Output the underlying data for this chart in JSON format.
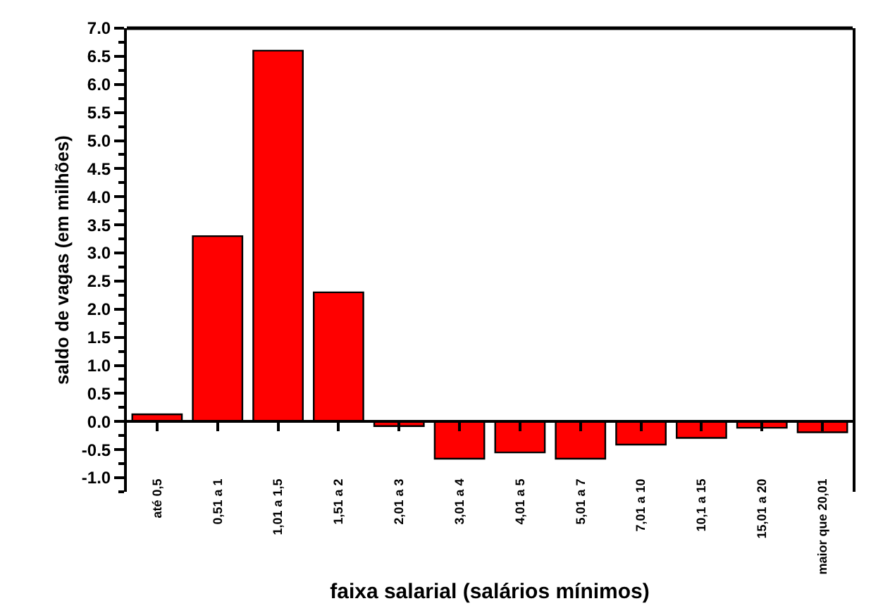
{
  "chart_data": {
    "type": "bar",
    "xlabel": "faixa salarial (salários mínimos)",
    "ylabel": "saldo de vagas (em milhões)",
    "categories": [
      "até 0,5",
      "0,51 a 1",
      "1,01 a 1,5",
      "1,51 a 2",
      "2,01 a 3",
      "3,01 a 4",
      "4,01 a 5",
      "5,01 a 7",
      "7,01 a 10",
      "10,1 a 15",
      "15,01 a 20",
      "maior que 20,01"
    ],
    "values": [
      0.13,
      3.3,
      6.6,
      2.3,
      -0.08,
      -0.66,
      -0.55,
      -0.66,
      -0.41,
      -0.29,
      -0.11,
      -0.19
    ],
    "color": "#ff0000",
    "ylim": [
      -1.25,
      7.0
    ],
    "yticks": [
      {
        "value": -1.25,
        "label": null
      },
      {
        "value": -1.0,
        "label": "-1.0"
      },
      {
        "value": -0.75,
        "label": null
      },
      {
        "value": -0.5,
        "label": "-0.5"
      },
      {
        "value": -0.25,
        "label": null
      },
      {
        "value": 0,
        "label": "0.0"
      },
      {
        "value": 0.25,
        "label": null
      },
      {
        "value": 0.5,
        "label": "0.5"
      },
      {
        "value": 0.75,
        "label": null
      },
      {
        "value": 1.0,
        "label": "1.0"
      },
      {
        "value": 1.25,
        "label": null
      },
      {
        "value": 1.5,
        "label": "1.5"
      },
      {
        "value": 1.75,
        "label": null
      },
      {
        "value": 2.0,
        "label": "2.0"
      },
      {
        "value": 2.25,
        "label": null
      },
      {
        "value": 2.5,
        "label": "2.5"
      },
      {
        "value": 2.75,
        "label": null
      },
      {
        "value": 3.0,
        "label": "3.0"
      },
      {
        "value": 3.25,
        "label": null
      },
      {
        "value": 3.5,
        "label": "3.5"
      },
      {
        "value": 3.75,
        "label": null
      },
      {
        "value": 4.0,
        "label": "4.0"
      },
      {
        "value": 4.25,
        "label": null
      },
      {
        "value": 4.5,
        "label": "4.5"
      },
      {
        "value": 4.75,
        "label": null
      },
      {
        "value": 5.0,
        "label": "5.0"
      },
      {
        "value": 5.25,
        "label": null
      },
      {
        "value": 5.5,
        "label": "5.5"
      },
      {
        "value": 5.75,
        "label": null
      },
      {
        "value": 6.0,
        "label": "6.0"
      },
      {
        "value": 6.25,
        "label": null
      },
      {
        "value": 6.5,
        "label": "6.5"
      },
      {
        "value": 6.75,
        "label": null
      },
      {
        "value": 7.0,
        "label": "7.0"
      }
    ]
  }
}
